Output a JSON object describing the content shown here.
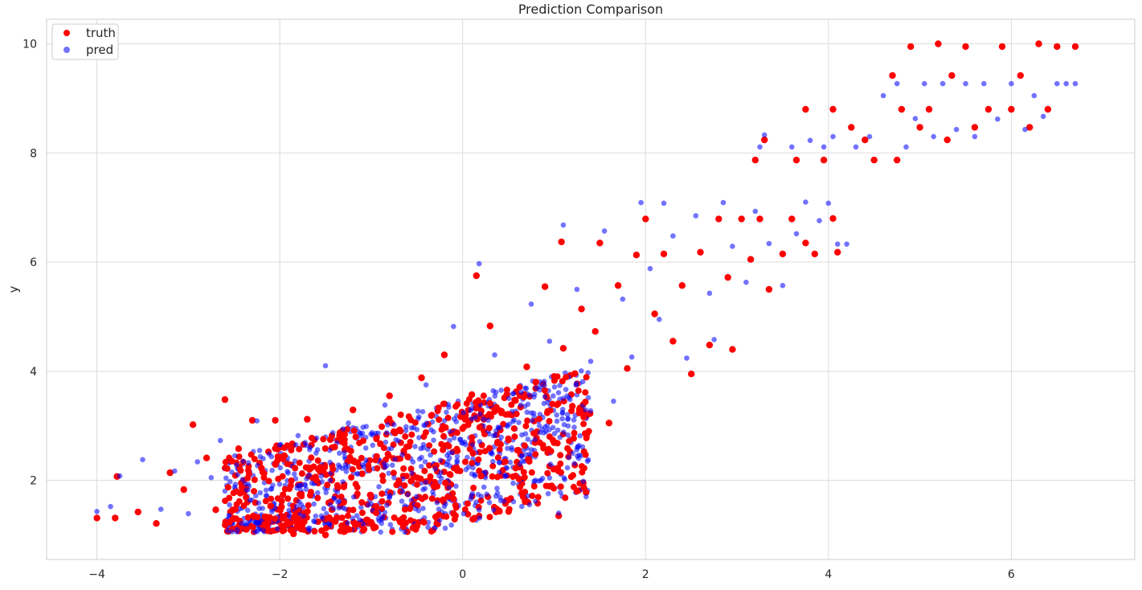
{
  "chart_data": {
    "type": "scatter",
    "title": "Prediction Comparison",
    "xlabel": "",
    "ylabel": "y",
    "xlim": [
      -4.55,
      7.35
    ],
    "ylim": [
      0.55,
      10.45
    ],
    "xticks": [
      -4,
      -2,
      0,
      2,
      4,
      6
    ],
    "yticks": [
      2,
      4,
      6,
      8,
      10
    ],
    "grid": true,
    "legend_position": "top-left",
    "series": [
      {
        "name": "truth",
        "color": "#ff0000",
        "alpha": 1.0,
        "points": [
          [
            -4.0,
            1.31
          ],
          [
            -3.8,
            1.31
          ],
          [
            -3.78,
            2.07
          ],
          [
            -3.55,
            1.42
          ],
          [
            -3.35,
            1.21
          ],
          [
            -3.2,
            2.14
          ],
          [
            -3.05,
            1.83
          ],
          [
            -2.95,
            3.02
          ],
          [
            -2.8,
            2.41
          ],
          [
            -2.7,
            1.46
          ],
          [
            -2.6,
            3.48
          ],
          [
            -2.55,
            1.23
          ],
          [
            -2.45,
            2.58
          ],
          [
            -2.3,
            3.1
          ],
          [
            -2.2,
            2.22
          ],
          [
            -2.1,
            1.53
          ],
          [
            -2.05,
            3.1
          ],
          [
            -1.95,
            2.45
          ],
          [
            -1.85,
            1.02
          ],
          [
            -1.7,
            3.12
          ],
          [
            -1.6,
            2.0
          ],
          [
            -1.5,
            1.0
          ],
          [
            -1.4,
            2.61
          ],
          [
            -1.3,
            1.88
          ],
          [
            -1.2,
            3.29
          ],
          [
            -1.1,
            2.12
          ],
          [
            -1.0,
            1.23
          ],
          [
            -0.9,
            2.67
          ],
          [
            -0.8,
            3.55
          ],
          [
            -0.7,
            1.95
          ],
          [
            -0.6,
            2.43
          ],
          [
            -0.5,
            1.16
          ],
          [
            -0.45,
            3.88
          ],
          [
            -0.3,
            2.26
          ],
          [
            -0.2,
            4.3
          ],
          [
            -0.1,
            1.66
          ],
          [
            0.0,
            2.95
          ],
          [
            0.1,
            3.57
          ],
          [
            0.15,
            5.75
          ],
          [
            0.2,
            2.08
          ],
          [
            0.3,
            4.83
          ],
          [
            0.4,
            1.44
          ],
          [
            0.5,
            3.21
          ],
          [
            0.6,
            2.55
          ],
          [
            0.7,
            4.08
          ],
          [
            0.8,
            3.8
          ],
          [
            0.9,
            5.55
          ],
          [
            1.0,
            2.69
          ],
          [
            1.05,
            1.35
          ],
          [
            1.08,
            6.37
          ],
          [
            1.1,
            4.42
          ],
          [
            1.2,
            3.36
          ],
          [
            1.3,
            5.14
          ],
          [
            1.35,
            1.78
          ],
          [
            1.45,
            4.73
          ],
          [
            1.5,
            6.35
          ],
          [
            1.6,
            3.05
          ],
          [
            1.7,
            5.57
          ],
          [
            1.8,
            4.05
          ],
          [
            1.9,
            6.13
          ],
          [
            2.0,
            6.79
          ],
          [
            2.1,
            5.05
          ],
          [
            2.2,
            6.15
          ],
          [
            2.3,
            4.55
          ],
          [
            2.4,
            5.57
          ],
          [
            2.5,
            3.95
          ],
          [
            2.6,
            6.18
          ],
          [
            2.7,
            4.48
          ],
          [
            2.8,
            6.79
          ],
          [
            2.9,
            5.72
          ],
          [
            2.95,
            4.4
          ],
          [
            3.05,
            6.79
          ],
          [
            3.15,
            6.05
          ],
          [
            3.25,
            6.79
          ],
          [
            3.35,
            5.5
          ],
          [
            3.5,
            6.15
          ],
          [
            3.6,
            6.79
          ],
          [
            3.75,
            6.35
          ],
          [
            3.85,
            6.15
          ],
          [
            4.05,
            6.8
          ],
          [
            4.1,
            6.18
          ],
          [
            3.2,
            7.87
          ],
          [
            3.3,
            8.24
          ],
          [
            3.65,
            7.87
          ],
          [
            3.75,
            8.8
          ],
          [
            3.95,
            7.87
          ],
          [
            4.05,
            8.8
          ],
          [
            4.25,
            8.47
          ],
          [
            4.4,
            8.24
          ],
          [
            4.5,
            7.87
          ],
          [
            4.7,
            9.42
          ],
          [
            4.75,
            7.87
          ],
          [
            4.8,
            8.8
          ],
          [
            4.9,
            9.95
          ],
          [
            5.0,
            8.47
          ],
          [
            5.1,
            8.8
          ],
          [
            5.2,
            10.0
          ],
          [
            5.3,
            8.24
          ],
          [
            5.35,
            9.42
          ],
          [
            5.5,
            9.95
          ],
          [
            5.6,
            8.47
          ],
          [
            5.75,
            8.8
          ],
          [
            5.9,
            9.95
          ],
          [
            6.0,
            8.8
          ],
          [
            6.1,
            9.42
          ],
          [
            6.2,
            8.47
          ],
          [
            6.3,
            10.0
          ],
          [
            6.4,
            8.8
          ],
          [
            6.5,
            9.95
          ],
          [
            6.7,
            9.95
          ]
        ]
      },
      {
        "name": "pred",
        "color": "#0000ff",
        "alpha": 0.55,
        "points": [
          [
            -4.0,
            1.43
          ],
          [
            -3.85,
            1.52
          ],
          [
            -3.75,
            2.08
          ],
          [
            -3.5,
            2.38
          ],
          [
            -3.3,
            1.47
          ],
          [
            -3.15,
            2.17
          ],
          [
            -3.0,
            1.39
          ],
          [
            -2.9,
            2.34
          ],
          [
            -2.75,
            2.05
          ],
          [
            -2.65,
            2.73
          ],
          [
            -2.55,
            1.55
          ],
          [
            -2.4,
            2.35
          ],
          [
            -2.25,
            3.09
          ],
          [
            -2.15,
            1.82
          ],
          [
            -2.0,
            2.65
          ],
          [
            -1.9,
            1.45
          ],
          [
            -1.8,
            2.82
          ],
          [
            -1.65,
            1.95
          ],
          [
            -1.5,
            4.1
          ],
          [
            -1.45,
            2.33
          ],
          [
            -1.35,
            1.62
          ],
          [
            -1.25,
            3.05
          ],
          [
            -1.15,
            2.12
          ],
          [
            -1.0,
            1.57
          ],
          [
            -0.95,
            2.86
          ],
          [
            -0.85,
            3.38
          ],
          [
            -0.75,
            2.05
          ],
          [
            -0.6,
            1.74
          ],
          [
            -0.5,
            2.93
          ],
          [
            -0.4,
            3.75
          ],
          [
            -0.3,
            2.21
          ],
          [
            -0.2,
            1.52
          ],
          [
            -0.1,
            4.82
          ],
          [
            0.0,
            2.68
          ],
          [
            0.1,
            3.32
          ],
          [
            0.18,
            5.97
          ],
          [
            0.25,
            2.15
          ],
          [
            0.35,
            4.3
          ],
          [
            0.45,
            1.62
          ],
          [
            0.55,
            3.08
          ],
          [
            0.65,
            2.45
          ],
          [
            0.75,
            5.23
          ],
          [
            0.85,
            3.72
          ],
          [
            0.95,
            4.55
          ],
          [
            1.05,
            1.4
          ],
          [
            1.1,
            6.68
          ],
          [
            1.15,
            2.83
          ],
          [
            1.25,
            5.5
          ],
          [
            1.35,
            1.7
          ],
          [
            1.4,
            4.18
          ],
          [
            1.55,
            6.57
          ],
          [
            1.65,
            3.45
          ],
          [
            1.75,
            5.32
          ],
          [
            1.85,
            4.26
          ],
          [
            1.95,
            7.09
          ],
          [
            2.05,
            5.88
          ],
          [
            2.15,
            4.95
          ],
          [
            2.2,
            7.08
          ],
          [
            2.3,
            6.48
          ],
          [
            2.45,
            4.24
          ],
          [
            2.55,
            6.85
          ],
          [
            2.7,
            5.43
          ],
          [
            2.75,
            4.58
          ],
          [
            2.85,
            7.09
          ],
          [
            2.95,
            6.29
          ],
          [
            3.1,
            5.63
          ],
          [
            3.2,
            6.93
          ],
          [
            3.35,
            6.34
          ],
          [
            3.5,
            5.57
          ],
          [
            3.65,
            6.52
          ],
          [
            3.75,
            7.1
          ],
          [
            3.9,
            6.76
          ],
          [
            4.0,
            7.08
          ],
          [
            4.1,
            6.33
          ],
          [
            4.2,
            6.33
          ],
          [
            3.25,
            8.11
          ],
          [
            3.3,
            8.33
          ],
          [
            3.6,
            8.11
          ],
          [
            3.8,
            8.23
          ],
          [
            3.95,
            8.11
          ],
          [
            4.05,
            8.3
          ],
          [
            4.3,
            8.11
          ],
          [
            4.45,
            8.3
          ],
          [
            4.6,
            9.05
          ],
          [
            4.75,
            9.27
          ],
          [
            4.85,
            8.11
          ],
          [
            4.95,
            8.63
          ],
          [
            5.05,
            9.27
          ],
          [
            5.15,
            8.3
          ],
          [
            5.25,
            9.27
          ],
          [
            5.4,
            8.43
          ],
          [
            5.5,
            9.27
          ],
          [
            5.6,
            8.3
          ],
          [
            5.7,
            9.27
          ],
          [
            5.85,
            8.62
          ],
          [
            6.0,
            9.27
          ],
          [
            6.15,
            8.43
          ],
          [
            6.25,
            9.05
          ],
          [
            6.35,
            8.67
          ],
          [
            6.5,
            9.27
          ],
          [
            6.6,
            9.27
          ],
          [
            6.7,
            9.27
          ]
        ]
      }
    ]
  }
}
